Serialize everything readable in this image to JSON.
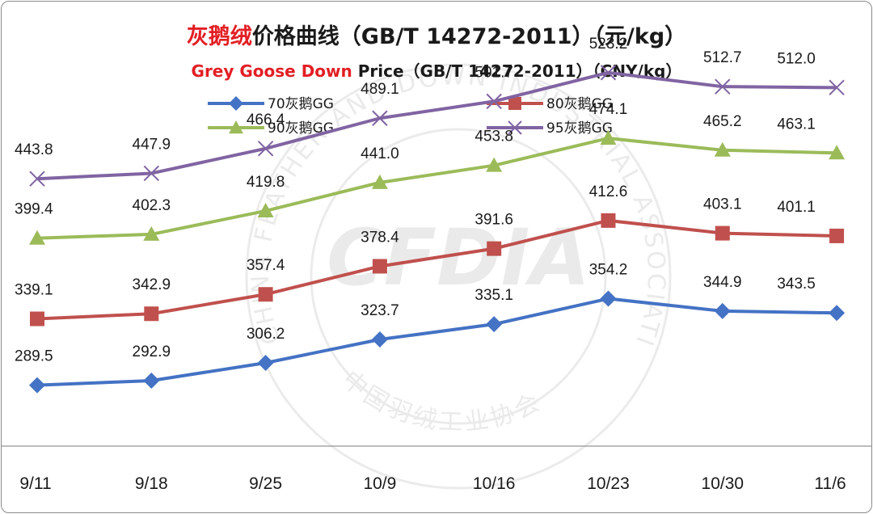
{
  "chart_data": {
    "type": "line",
    "title_red": "灰鹅绒",
    "title_rest": "价格曲线（GB/T 14272-2011）（元/kg）",
    "subtitle_red": "Grey Goose Down",
    "subtitle_rest": " Price（GB/T 14272-2011）（CNY/kg）",
    "watermark_text": "CHINA FEATHER AND DOWN INDUSTRIAL ASSOCIATION",
    "watermark_cn": "中国羽绒工业协会",
    "watermark_logo": "CFDIA",
    "categories": [
      "9/11",
      "9/18",
      "9/25",
      "10/9",
      "10/16",
      "10/23",
      "10/30",
      "11/6"
    ],
    "ylim": [
      250,
      540
    ],
    "series": [
      {
        "name": "70灰鹅GG",
        "color": "#4472c4",
        "marker": "diamond",
        "values": [
          289.5,
          292.9,
          306.2,
          323.7,
          335.1,
          354.2,
          344.9,
          343.5
        ]
      },
      {
        "name": "80灰鹅GG",
        "color": "#c0504d",
        "marker": "square",
        "values": [
          339.1,
          342.9,
          357.4,
          378.4,
          391.6,
          412.6,
          403.1,
          401.1
        ]
      },
      {
        "name": "90灰鹅GG",
        "color": "#9bbb59",
        "marker": "triangle",
        "values": [
          399.4,
          402.3,
          419.8,
          441.0,
          453.8,
          474.1,
          465.2,
          463.1
        ]
      },
      {
        "name": "95灰鹅GG",
        "color": "#8064a2",
        "marker": "x",
        "values": [
          443.8,
          447.9,
          466.4,
          489.1,
          501.7,
          523.2,
          512.7,
          512.0
        ]
      }
    ],
    "labels": [
      [
        "289.5",
        "292.9",
        "306.2",
        "323.7",
        "335.1",
        "354.2",
        "344.9",
        "343.5"
      ],
      [
        "339.1",
        "342.9",
        "357.4",
        "378.4",
        "391.6",
        "412.6",
        "403.1",
        "401.1"
      ],
      [
        "399.4",
        "402.3",
        "419.8",
        "441.0",
        "453.8",
        "474.1",
        "465.2",
        "463.1"
      ],
      [
        "443.8",
        "447.9",
        "466.4",
        "489.1",
        "501.7",
        "523.2",
        "512.7",
        "512.0"
      ]
    ],
    "grid": false,
    "legend": "top-center"
  }
}
